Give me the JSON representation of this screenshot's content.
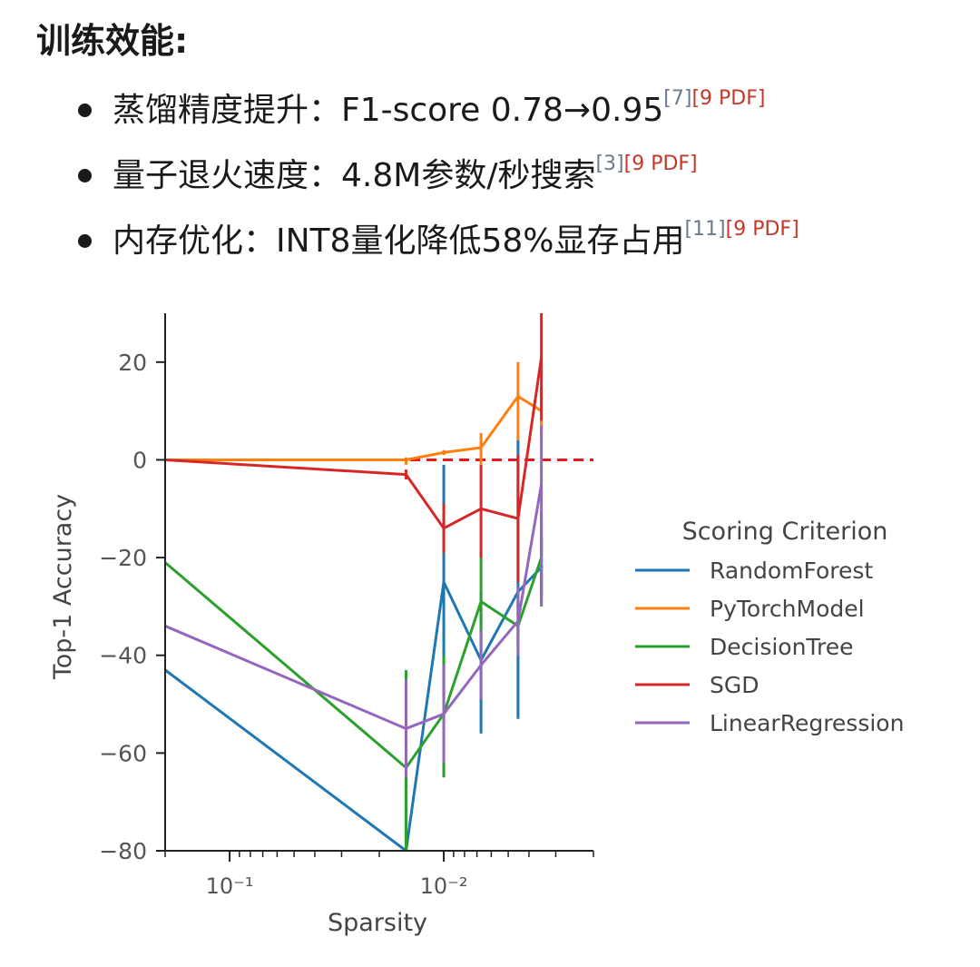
{
  "heading": "训练效能:",
  "bullets": [
    {
      "text": "蒸馏精度提升：F1-score 0.78→0.95",
      "cite": "[7]",
      "pdf": "[9 PDF]"
    },
    {
      "text": "量子退火速度：4.8M参数/秒搜索",
      "cite": "[3]",
      "pdf": "[9 PDF]"
    },
    {
      "text": "内存优化：INT8量化降低58%显存占用",
      "cite": "[11]",
      "pdf": "[9 PDF]"
    }
  ],
  "chart_data": {
    "type": "line",
    "xlabel": "Sparsity",
    "ylabel": "Top-1 Accuracy",
    "xscale": "log",
    "xaxis_inverted": true,
    "xlim": [
      0.2,
      0.002
    ],
    "ylim": [
      -80,
      30
    ],
    "yticks": [
      20,
      0,
      -20,
      -40,
      -60,
      -80
    ],
    "xtick_labels": [
      {
        "value": 0.1,
        "label": "10⁻¹"
      },
      {
        "value": 0.01,
        "label": "10⁻²"
      }
    ],
    "reference_line": {
      "y": 0,
      "color": "#e41a1c",
      "style": "dashed"
    },
    "grid": false,
    "legend": {
      "title": "Scoring Criterion",
      "position": "right"
    },
    "x": [
      0.2,
      0.015,
      0.01,
      0.0067,
      0.0045,
      0.0035
    ],
    "series": [
      {
        "name": "RandomForest",
        "color": "#1f77b4",
        "values": [
          -43,
          -80,
          -25,
          -41,
          -27,
          -22
        ],
        "err": [
          [
            -43,
            -43
          ],
          [
            -80,
            -80
          ],
          [
            -49,
            -1
          ],
          [
            -56,
            -27
          ],
          [
            -53,
            4
          ],
          [
            -28,
            -16
          ]
        ]
      },
      {
        "name": "PyTorchModel",
        "color": "#ff7f0e",
        "values": [
          0,
          0,
          1.5,
          2.5,
          13,
          10
        ],
        "err": [
          [
            0,
            0
          ],
          [
            -1,
            0.5
          ],
          [
            1,
            2
          ],
          [
            -1,
            5.5
          ],
          [
            4,
            20
          ],
          [
            5,
            15
          ]
        ]
      },
      {
        "name": "DecisionTree",
        "color": "#2ca02c",
        "values": [
          -21,
          -63,
          -52,
          -29,
          -34,
          -20
        ],
        "err": [
          [
            -21,
            -21
          ],
          [
            -86,
            -43
          ],
          [
            -65,
            -40
          ],
          [
            -39,
            -19
          ],
          [
            -38,
            -30
          ],
          [
            -30,
            -11
          ]
        ]
      },
      {
        "name": "SGD",
        "color": "#d62728",
        "values": [
          0,
          -3,
          -14,
          -10,
          -12,
          21
        ],
        "err": [
          [
            0,
            0
          ],
          [
            -4,
            -2
          ],
          [
            -19,
            -9
          ],
          [
            -20,
            -1
          ],
          [
            -25,
            1
          ],
          [
            8,
            30
          ]
        ]
      },
      {
        "name": "LinearRegression",
        "color": "#9467bd",
        "values": [
          -34,
          -55,
          -52,
          -42,
          -33,
          -5
        ],
        "err": [
          [
            -34,
            -34
          ],
          [
            -65,
            -45
          ],
          [
            -62,
            -42
          ],
          [
            -49,
            -35
          ],
          [
            -40,
            -26
          ],
          [
            -30,
            7
          ]
        ]
      }
    ]
  }
}
